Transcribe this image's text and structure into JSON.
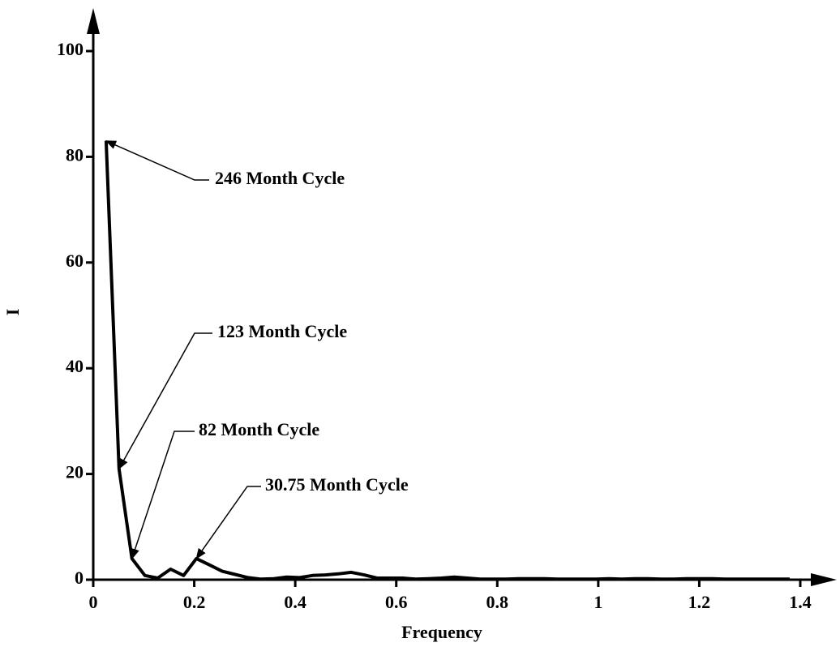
{
  "chart_data": {
    "type": "line",
    "xlabel": "Frequency",
    "ylabel": "I",
    "x": [
      0.0255,
      0.0511,
      0.0766,
      0.1022,
      0.1277,
      0.1532,
      0.1788,
      0.2043,
      0.2299,
      0.2554,
      0.2809,
      0.3065,
      0.332,
      0.3576,
      0.3831,
      0.4087,
      0.4342,
      0.4597,
      0.4853,
      0.5108,
      0.5364,
      0.5619,
      0.5874,
      0.613,
      0.6385,
      0.6641,
      0.6896,
      0.7151,
      0.7407,
      0.7662,
      0.7918,
      0.8173,
      0.8428,
      0.8684,
      0.8939,
      0.9195,
      0.945,
      0.9705,
      0.9961,
      1.0216,
      1.0472,
      1.0727,
      1.0983,
      1.1238,
      1.1493,
      1.1749,
      1.2004,
      1.226,
      1.2515,
      1.277,
      1.3026,
      1.3281,
      1.3537,
      1.3792
    ],
    "values": [
      83,
      21,
      4,
      0.8,
      0.3,
      2,
      0.8,
      4,
      2.8,
      1.6,
      1,
      0.4,
      0.1,
      0.2,
      0.5,
      0.4,
      0.8,
      0.9,
      1.1,
      1.4,
      0.9,
      0.3,
      0.3,
      0.3,
      0.1,
      0.2,
      0.3,
      0.5,
      0.3,
      0.1,
      0.1,
      0.1,
      0.2,
      0.2,
      0.2,
      0.1,
      0.1,
      0.1,
      0.1,
      0.2,
      0.1,
      0.2,
      0.2,
      0.1,
      0.1,
      0.2,
      0.2,
      0.2,
      0.1,
      0.1,
      0.1,
      0.1,
      0.1,
      0.1
    ],
    "color": "#000000",
    "xlim": [
      0,
      1.4
    ],
    "ylim": [
      0,
      100
    ],
    "xticks": [
      0,
      0.2,
      0.4,
      0.6,
      0.8,
      1,
      1.2,
      1.4
    ],
    "yticks": [
      0,
      20,
      40,
      60,
      80,
      100
    ],
    "annotations": [
      "246 Month Cycle",
      "123 Month Cycle",
      "82 Month Cycle",
      "30.75 Month Cycle"
    ]
  }
}
